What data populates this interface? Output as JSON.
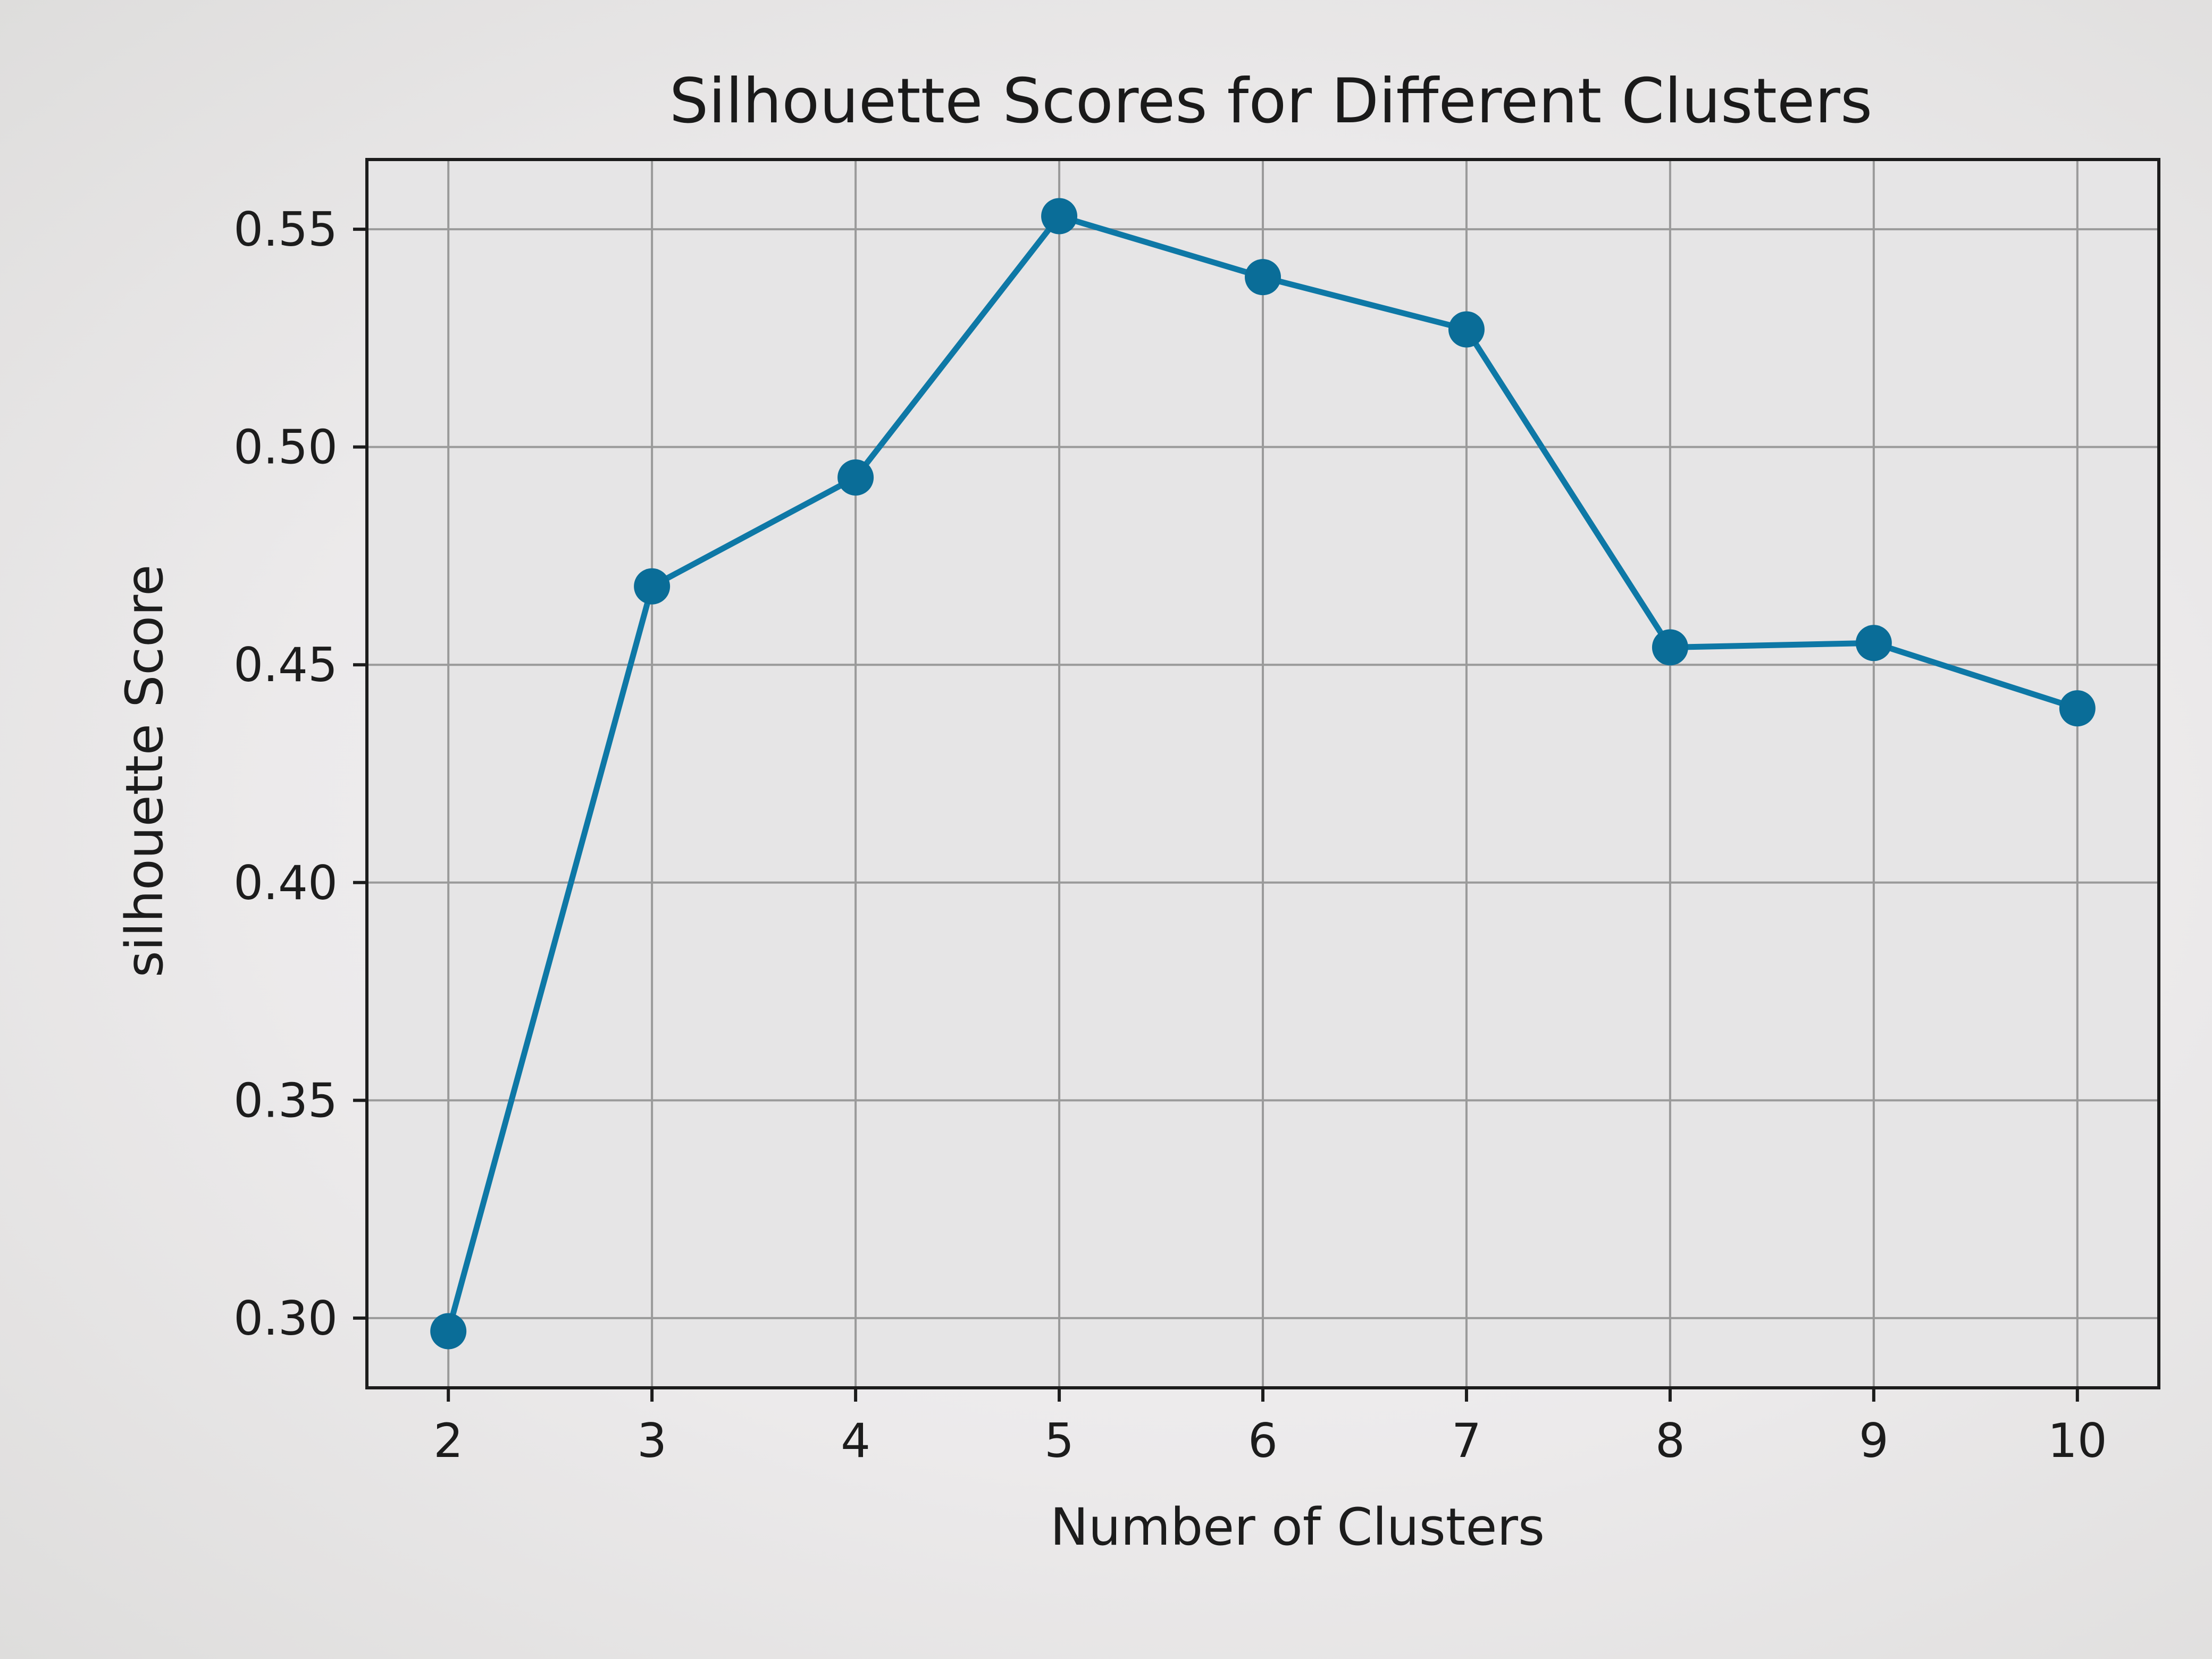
{
  "chart_data": {
    "type": "line",
    "title": "Silhouette Scores for Different Clusters",
    "xlabel": "Number of Clusters",
    "ylabel": "silhouette Score",
    "x": [
      2,
      3,
      4,
      5,
      6,
      7,
      8,
      9,
      10
    ],
    "series": [
      {
        "values": [
          0.297,
          0.468,
          0.493,
          0.553,
          0.539,
          0.527,
          0.454,
          0.455,
          0.44
        ],
        "color": "#0e78a6",
        "marker": "circle"
      }
    ],
    "xticks": [
      "2",
      "3",
      "4",
      "5",
      "6",
      "7",
      "8",
      "9",
      "10"
    ],
    "yticks": [
      "0.30",
      "0.35",
      "0.40",
      "0.45",
      "0.50",
      "0.55"
    ],
    "ytick_values": [
      0.3,
      0.35,
      0.4,
      0.45,
      0.5,
      0.55
    ],
    "xlim": [
      1.6,
      10.4
    ],
    "ylim": [
      0.284,
      0.566
    ],
    "grid": true,
    "legend": "none"
  }
}
